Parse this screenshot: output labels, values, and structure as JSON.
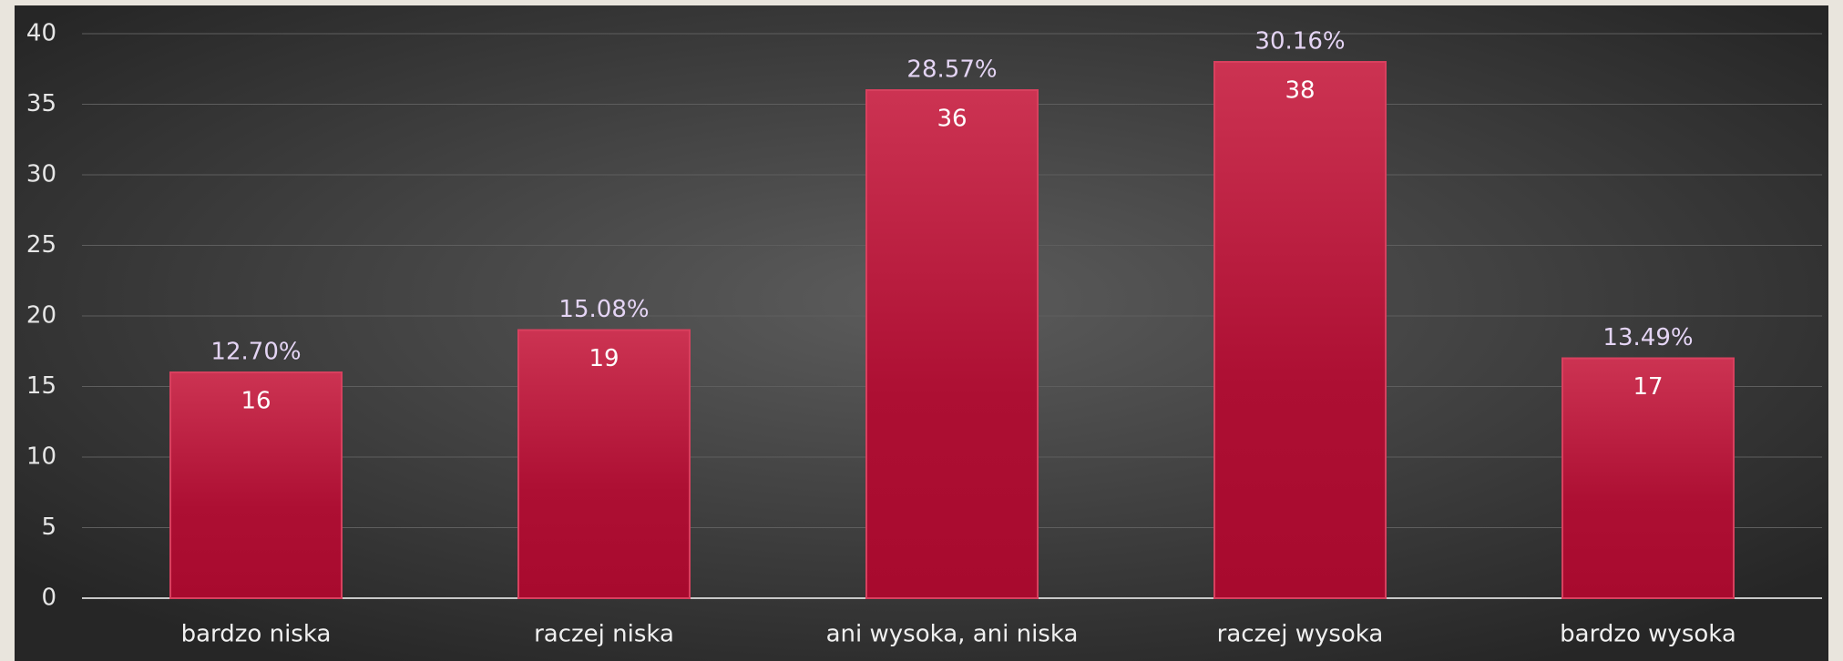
{
  "chart_data": {
    "type": "bar",
    "categories": [
      "bardzo niska",
      "raczej niska",
      "ani wysoka, ani niska",
      "raczej wysoka",
      "bardzo wysoka"
    ],
    "values": [
      16,
      19,
      36,
      38,
      17
    ],
    "percent_labels": [
      "12.70%",
      "15.08%",
      "28.57%",
      "30.16%",
      "13.49%"
    ],
    "color": "#b8173e",
    "ylim": [
      0,
      40
    ],
    "yticks": [
      0,
      5,
      10,
      15,
      20,
      25,
      30,
      35,
      40
    ],
    "grid": true
  }
}
